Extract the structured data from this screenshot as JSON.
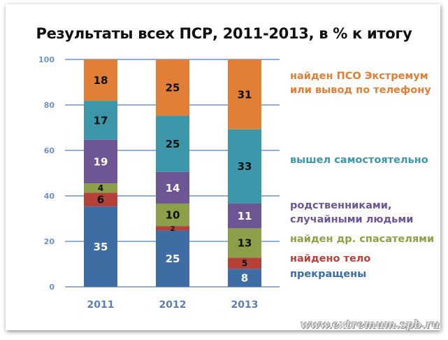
{
  "chart_data": {
    "type": "bar",
    "stacked": true,
    "title": "Результаты всех ПСР, 2011-2013, в % к итогу",
    "categories": [
      "2011",
      "2012",
      "2013"
    ],
    "ylim": [
      0,
      100
    ],
    "yticks": [
      0,
      20,
      40,
      60,
      80,
      100
    ],
    "grid": true,
    "legend_position": "right",
    "series": [
      {
        "name": "прекращены",
        "color": "#3E6DA4",
        "label_color": "#ffffff",
        "values": [
          35,
          25,
          8
        ]
      },
      {
        "name": "найдено тело",
        "color": "#B5413B",
        "label_color": "#111111",
        "values": [
          6,
          2,
          5
        ]
      },
      {
        "name": "найден др. спасателями",
        "color": "#8CA04A",
        "label_color": "#111111",
        "values": [
          4,
          10,
          13
        ]
      },
      {
        "name": "родственниками, случайными людьми",
        "lines": [
          "родственниками,",
          "случайными людьми"
        ],
        "color": "#6E5594",
        "label_color": "#ffffff",
        "values": [
          19,
          14,
          11
        ]
      },
      {
        "name": "вышел самостоятельно",
        "color": "#3D97AA",
        "label_color": "#111111",
        "values": [
          17,
          25,
          33
        ]
      },
      {
        "name": "найден ПСО Экстремум или вывод по телефону",
        "lines": [
          "найден ПСО Экстремум",
          "или вывод по телефону"
        ],
        "color": "#E07F35",
        "label_color": "#111111",
        "values": [
          18,
          25,
          31
        ]
      }
    ]
  },
  "watermark": "www.extremum.spb.ru"
}
